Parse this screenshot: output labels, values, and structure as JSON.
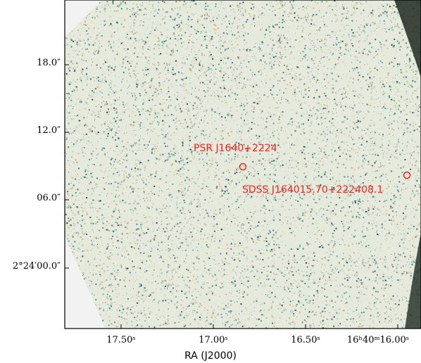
{
  "image": {
    "description_colors": {
      "background": "#e9ecdf",
      "speckle_teal": "#2f7e7e",
      "speckle_orange": "#d9a06a",
      "speckle_dark": "#0c3a38",
      "outside": "#f2f2f2",
      "marker": "#e8261f"
    }
  },
  "axes": {
    "x_title": "RA (J2000)",
    "x_ticks": [
      "17.50ˢ",
      "17.00ˢ",
      "16.50ˢ",
      "16ʰ40ᵐ16.00ˢ"
    ],
    "y_ticks": [
      "18.0″",
      "12.0″",
      "06.0″",
      "2°24′00.0″"
    ]
  },
  "sources": [
    {
      "label": "PSR J1640+2224"
    },
    {
      "label": "SDSS J164015.70+222408.1"
    }
  ]
}
